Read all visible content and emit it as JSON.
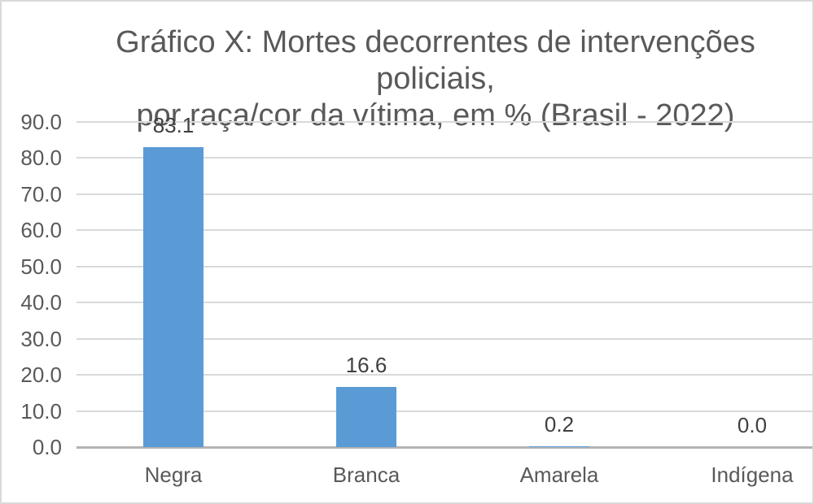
{
  "title": {
    "line1": "Gráfico X: Mortes decorrentes de intervenções policiais,",
    "line2": "por raça/cor da vítima, em % (Brasil - 2022)"
  },
  "chart_data": {
    "type": "bar",
    "title": "Gráfico X: Mortes decorrentes de intervenções policiais, por raça/cor da vítima, em % (Brasil - 2022)",
    "categories": [
      "Negra",
      "Branca",
      "Amarela",
      "Indígena"
    ],
    "values": [
      83.1,
      16.6,
      0.2,
      0.0
    ],
    "data_labels": [
      "83.1",
      "16.6",
      "0.2",
      "0.0"
    ],
    "xlabel": "",
    "ylabel": "",
    "ylim": [
      0,
      90
    ],
    "ytick_step": 10,
    "ytick_labels": [
      "0.0",
      "10.0",
      "20.0",
      "30.0",
      "40.0",
      "50.0",
      "60.0",
      "70.0",
      "80.0",
      "90.0"
    ],
    "grid": true,
    "legend": false,
    "colors": {
      "bar": "#5b9bd5",
      "gridline": "#d9d9d9",
      "axis_line": "#b3b3b3",
      "title_text": "#595959",
      "axis_text": "#595959",
      "data_label_text": "#404040",
      "background": "#ffffff",
      "border": "#d9d9d9"
    }
  }
}
